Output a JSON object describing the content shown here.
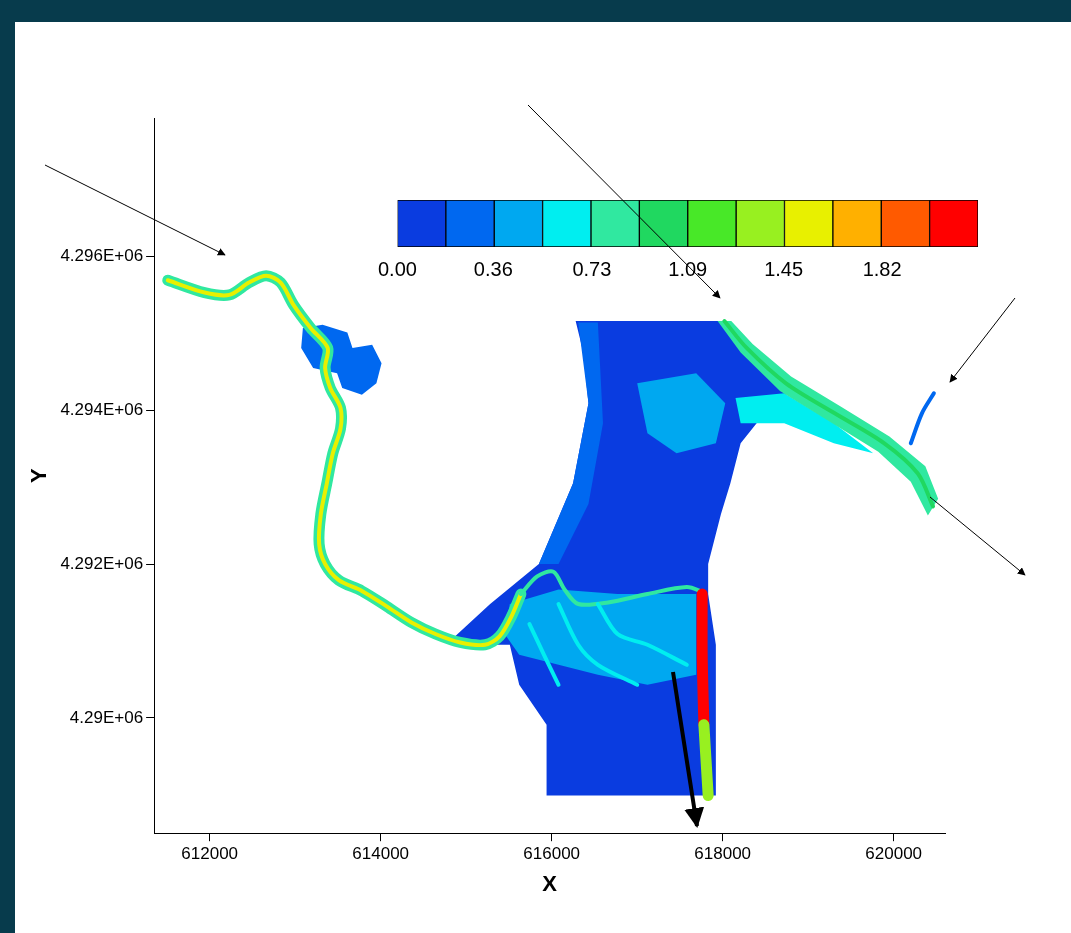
{
  "chart_data": {
    "type": "contour",
    "x_label": "X",
    "y_label": "Y",
    "xlim": [
      611350,
      620600
    ],
    "xticks": [
      612000,
      614000,
      616000,
      618000,
      620000
    ],
    "ylim": [
      4288500,
      4297800
    ],
    "yticks": [
      {
        "value": 4290000,
        "label": "4.29E+06"
      },
      {
        "value": 4292000,
        "label": "4.292E+06"
      },
      {
        "value": 4294000,
        "label": "4.294E+06"
      },
      {
        "value": 4296000,
        "label": "4.296E+06"
      }
    ],
    "grid": false,
    "colorbar": {
      "range": [
        0,
        2.18
      ],
      "ticks": [
        {
          "value": 0,
          "label": "0.00"
        },
        0.36,
        0.73,
        1.09,
        1.45,
        1.82
      ],
      "colors": [
        "#0a3ce0",
        "#0068f0",
        "#00a8f0",
        "#00eef0",
        "#30e8a0",
        "#20d860",
        "#48e828",
        "#98f020",
        "#e8f000",
        "#ffb000",
        "#ff5a00",
        "#ff0000"
      ]
    },
    "series": [
      {
        "type": "area",
        "value": 0.12,
        "x": [
          616280,
          618010,
          618380,
          618840,
          618490,
          618210,
          618090,
          617980,
          617830,
          617830,
          617920,
          617920,
          615940,
          615940,
          615620,
          615510,
          615220,
          614820,
          615280,
          615850,
          616250,
          616430,
          616370
        ],
        "y": [
          4295160,
          4295160,
          4294610,
          4294090,
          4293960,
          4293570,
          4293050,
          4292650,
          4292000,
          4291610,
          4290950,
          4288990,
          4288990,
          4289910,
          4290430,
          4290950,
          4290950,
          4291010,
          4291480,
          4292000,
          4293050,
          4294090,
          4294750
        ]
      },
      {
        "type": "area",
        "value": 0.27,
        "x": [
          616310,
          616540,
          616600,
          616430,
          616080,
          615850,
          616250,
          616430
        ],
        "y": [
          4295140,
          4295140,
          4293830,
          4292780,
          4292000,
          4292000,
          4293050,
          4294090
        ]
      },
      {
        "type": "area",
        "value": 0.45,
        "x": [
          617000,
          617690,
          618030,
          617920,
          617460,
          617120
        ],
        "y": [
          4294350,
          4294480,
          4294090,
          4293570,
          4293440,
          4293700
        ]
      },
      {
        "type": "area",
        "value": 0.6,
        "x": [
          618150,
          618720,
          619300,
          619760,
          619300,
          618720,
          618210
        ],
        "y": [
          4294160,
          4294220,
          4293830,
          4293440,
          4293570,
          4293830,
          4293830
        ]
      },
      {
        "type": "area",
        "value": 0.27,
        "x": [
          613090,
          613320,
          613610,
          613670,
          613900,
          614010,
          613950,
          613780,
          613550,
          613490,
          613210,
          613070
        ],
        "y": [
          4295070,
          4295110,
          4295010,
          4294810,
          4294850,
          4294610,
          4294350,
          4294200,
          4294290,
          4294480,
          4294550,
          4294810
        ]
      },
      {
        "type": "area",
        "value": 0.45,
        "x": [
          615510,
          616080,
          616770,
          617690,
          617690,
          617120,
          616540,
          616080,
          615620,
          615450
        ],
        "y": [
          4291480,
          4291670,
          4291610,
          4291610,
          4290560,
          4290430,
          4290560,
          4290690,
          4290820,
          4291090
        ]
      },
      {
        "type": "area",
        "value": 0.85,
        "x": [
          617940,
          618210,
          618670,
          619240,
          619820,
          620200,
          620400,
          620520,
          620370,
          619950,
          619380,
          618800,
          618350,
          618100
        ],
        "y": [
          4295160,
          4294750,
          4294250,
          4293860,
          4293460,
          4293070,
          4292630,
          4292850,
          4293270,
          4293660,
          4294050,
          4294440,
          4294860,
          4295160
        ]
      },
      {
        "type": "line",
        "line_style": "wide",
        "value": 0.9,
        "x": [
          611510,
          611940,
          612230,
          612460,
          612660,
          612830,
          612980,
          613180,
          613380,
          613350,
          613410,
          613530,
          613530,
          613440,
          613370,
          613300,
          613280,
          613350,
          613510,
          613780,
          614070,
          614360,
          614640,
          614930,
          615220,
          615390,
          615530,
          615640
        ],
        "y": [
          4295690,
          4295530,
          4295500,
          4295660,
          4295750,
          4295660,
          4295370,
          4295070,
          4294810,
          4294550,
          4294290,
          4294030,
          4293760,
          4293440,
          4293050,
          4292650,
          4292260,
          4292000,
          4291790,
          4291650,
          4291450,
          4291240,
          4291090,
          4290980,
          4290950,
          4291060,
          4291320,
          4291610
        ]
      },
      {
        "type": "line",
        "line_style": "narrow",
        "value": 1.6,
        "x": [
          611510,
          611940,
          612230,
          612460,
          612660,
          612830,
          612980,
          613180,
          613380,
          613350,
          613410,
          613530,
          613530,
          613440,
          613370,
          613300,
          613280,
          613350,
          613510,
          613780,
          614070,
          614360,
          614640,
          614930,
          615220,
          615390,
          615530,
          615640
        ],
        "y": [
          4295690,
          4295530,
          4295500,
          4295660,
          4295750,
          4295660,
          4295370,
          4295070,
          4294810,
          4294550,
          4294290,
          4294030,
          4293760,
          4293440,
          4293050,
          4292650,
          4292260,
          4292000,
          4291790,
          4291650,
          4291450,
          4291240,
          4291090,
          4290980,
          4290950,
          4291060,
          4291320,
          4291610
        ]
      },
      {
        "type": "line",
        "line_style": "narrow",
        "value": 0.8,
        "x": [
          615640,
          615830,
          616020,
          616150,
          616310,
          616660,
          617120,
          617580,
          617780
        ],
        "y": [
          4291610,
          4291840,
          4291900,
          4291670,
          4291480,
          4291500,
          4291610,
          4291700,
          4291630
        ]
      },
      {
        "type": "line",
        "line_style": "narrow",
        "value": 0.6,
        "x": [
          616080,
          616310,
          616540,
          617000
        ],
        "y": [
          4291480,
          4290950,
          4290690,
          4290430
        ]
      },
      {
        "type": "line",
        "line_style": "narrow",
        "value": 0.6,
        "x": [
          616540,
          616770,
          617120,
          617580
        ],
        "y": [
          4291480,
          4291090,
          4290950,
          4290690
        ]
      },
      {
        "type": "line",
        "line_style": "narrow",
        "value": 0.6,
        "x": [
          615740,
          615910,
          616080
        ],
        "y": [
          4291220,
          4290820,
          4290430
        ]
      },
      {
        "type": "line",
        "line_style": "narrow",
        "value": 1.0,
        "x": [
          618020,
          618280,
          618740,
          619310,
          619890,
          620280,
          620460
        ],
        "y": [
          4295160,
          4294810,
          4294350,
          4293960,
          4293570,
          4293180,
          4292750
        ]
      },
      {
        "type": "line",
        "line_style": "narrow",
        "value": 0.2,
        "x": [
          620200,
          620330,
          620470
        ],
        "y": [
          4293570,
          4293960,
          4294220
        ]
      },
      {
        "type": "line",
        "line_style": "wide",
        "value": 2.1,
        "x": [
          617760,
          617760,
          617780
        ],
        "y": [
          4291610,
          4290820,
          4289910
        ]
      },
      {
        "type": "line",
        "line_style": "wide",
        "value": 1.3,
        "x": [
          617780,
          617830
        ],
        "y": [
          4289910,
          4288990
        ]
      }
    ]
  }
}
